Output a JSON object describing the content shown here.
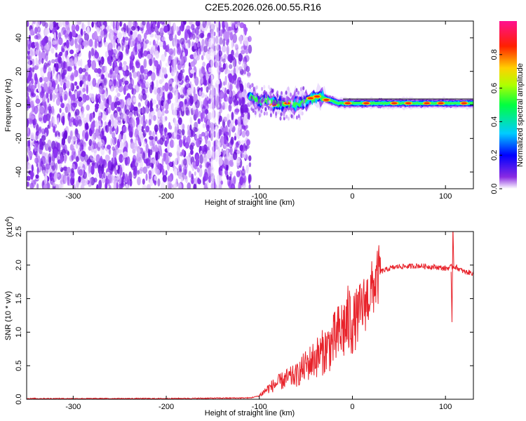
{
  "title": "C2E5.2026.026.00.55.R16",
  "chart_data": [
    {
      "type": "heatmap",
      "name": "spectrogram",
      "xlabel": "Height of straight line (km)",
      "ylabel": "Frequency (Hz)",
      "xlim": [
        -350,
        130
      ],
      "ylim": [
        -50,
        50
      ],
      "xticks": [
        -300,
        -200,
        -100,
        0,
        100
      ],
      "yticks": [
        -40,
        -20,
        0,
        20,
        40
      ],
      "colorbar": {
        "label": "Normalized spectral amplitude",
        "range": [
          0.0,
          1.0
        ],
        "ticks": [
          0.0,
          0.2,
          0.4,
          0.6,
          0.8
        ],
        "tick_labels": [
          "0.0",
          "0.2",
          "0.4",
          "0.6",
          "0.8"
        ],
        "colors": [
          "#ffffff",
          "#7a00ff",
          "#0000ff",
          "#00d0ff",
          "#00ff60",
          "#c8ff00",
          "#ffd000",
          "#ff3000",
          "#ff1090"
        ]
      },
      "noise_region_x": [
        -350,
        -110
      ],
      "ridge": [
        {
          "x": -110,
          "y": 5
        },
        {
          "x": -100,
          "y": 2
        },
        {
          "x": -90,
          "y": 3
        },
        {
          "x": -80,
          "y": 0
        },
        {
          "x": -70,
          "y": 1
        },
        {
          "x": -60,
          "y": 0
        },
        {
          "x": -50,
          "y": 2
        },
        {
          "x": -45,
          "y": 4
        },
        {
          "x": -35,
          "y": 5
        },
        {
          "x": -25,
          "y": 3
        },
        {
          "x": -15,
          "y": 1
        },
        {
          "x": 0,
          "y": 1
        },
        {
          "x": 20,
          "y": 1
        },
        {
          "x": 50,
          "y": 1
        },
        {
          "x": 80,
          "y": 1
        },
        {
          "x": 100,
          "y": 1
        },
        {
          "x": 130,
          "y": 1
        }
      ]
    },
    {
      "type": "line",
      "name": "snr",
      "xlabel": "Height of straight line (km)",
      "ylabel": "SNR (10 * v/v)",
      "scale_label": "(x10",
      "scale_exponent": "4",
      "xlim": [
        -350,
        130
      ],
      "ylim": [
        0,
        2.5
      ],
      "xticks": [
        -300,
        -200,
        -100,
        0,
        100
      ],
      "yticks": [
        0.0,
        0.5,
        1.0,
        1.5,
        2.0,
        2.5
      ],
      "ytick_labels": [
        "0.0",
        "0.5",
        "1.0",
        "1.5",
        "2.0",
        "2.5"
      ],
      "series_color": "#e8222a",
      "series": [
        {
          "name": "SNR",
          "x": [
            -350,
            -300,
            -200,
            -110,
            -100,
            -90,
            -80,
            -70,
            -60,
            -50,
            -40,
            -30,
            -20,
            -10,
            0,
            10,
            20,
            30,
            40,
            50,
            60,
            70,
            80,
            90,
            100,
            110,
            120,
            130
          ],
          "y": [
            0.01,
            0.01,
            0.01,
            0.02,
            0.05,
            0.15,
            0.22,
            0.28,
            0.32,
            0.45,
            0.55,
            0.65,
            0.78,
            0.95,
            1.1,
            1.35,
            1.6,
            1.9,
            1.95,
            1.98,
            1.98,
            1.99,
            1.98,
            1.97,
            1.95,
            1.98,
            1.9,
            1.88
          ]
        }
      ]
    }
  ]
}
